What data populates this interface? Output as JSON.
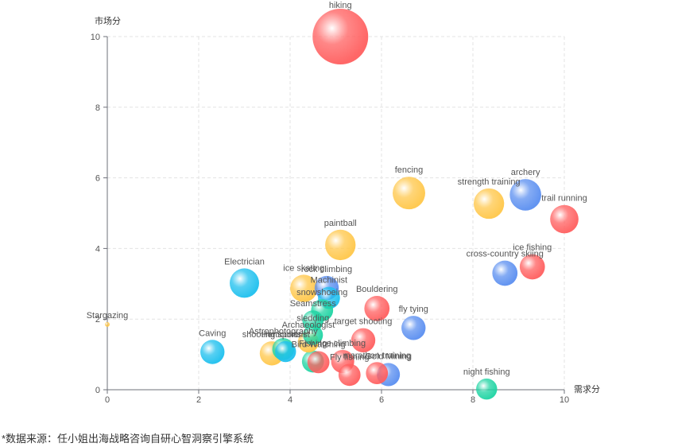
{
  "chart_data": {
    "type": "scatter",
    "xlabel": "需求分",
    "ylabel": "市场分",
    "xlim": [
      0,
      10
    ],
    "ylim": [
      0,
      10
    ],
    "xticks": [
      0,
      2,
      4,
      6,
      8,
      10
    ],
    "yticks": [
      0,
      2,
      4,
      6,
      8,
      10
    ],
    "grid": true,
    "colors": {
      "red": "#ff5f5f",
      "orange": "#ffc74a",
      "blue": "#5b8ff0",
      "cyan": "#1ec0ee",
      "green": "#1fd4a3"
    },
    "points": [
      {
        "label": "hiking",
        "x": 5.1,
        "y": 10.0,
        "size": 10.0,
        "color": "red"
      },
      {
        "label": "fencing",
        "x": 6.6,
        "y": 5.57,
        "size": 5.6,
        "color": "orange"
      },
      {
        "label": "archery",
        "x": 9.15,
        "y": 5.52,
        "size": 5.4,
        "color": "blue"
      },
      {
        "label": "strength training",
        "x": 8.35,
        "y": 5.27,
        "size": 5.2,
        "color": "orange"
      },
      {
        "label": "trail running",
        "x": 10.0,
        "y": 4.83,
        "size": 4.8,
        "color": "red"
      },
      {
        "label": "paintball",
        "x": 5.1,
        "y": 4.1,
        "size": 5.2,
        "color": "orange"
      },
      {
        "label": "ice fishing",
        "x": 9.3,
        "y": 3.48,
        "size": 4.2,
        "color": "red"
      },
      {
        "label": "cross-country skiing",
        "x": 8.7,
        "y": 3.3,
        "size": 4.2,
        "color": "blue"
      },
      {
        "label": "Electrician",
        "x": 3.0,
        "y": 3.02,
        "size": 5.0,
        "color": "cyan"
      },
      {
        "label": "ice skating",
        "x": 4.3,
        "y": 2.87,
        "size": 4.6,
        "color": "orange"
      },
      {
        "label": "rock climbing",
        "x": 4.8,
        "y": 2.88,
        "size": 4.0,
        "color": "blue"
      },
      {
        "label": "Machinist",
        "x": 4.85,
        "y": 2.6,
        "size": 3.6,
        "color": "cyan"
      },
      {
        "label": "snowshoeing",
        "x": 4.7,
        "y": 2.25,
        "size": 3.6,
        "color": "green"
      },
      {
        "label": "Bouldering",
        "x": 5.9,
        "y": 2.3,
        "size": 4.2,
        "color": "red"
      },
      {
        "label": "Seamstress",
        "x": 4.5,
        "y": 1.95,
        "size": 3.4,
        "color": "green"
      },
      {
        "label": "fly tying",
        "x": 6.7,
        "y": 1.75,
        "size": 4.0,
        "color": "blue"
      },
      {
        "label": "sledding",
        "x": 4.5,
        "y": 1.55,
        "size": 3.2,
        "color": "green"
      },
      {
        "label": "Archaeologist",
        "x": 4.4,
        "y": 1.35,
        "size": 3.4,
        "color": "orange"
      },
      {
        "label": "target shooting",
        "x": 5.6,
        "y": 1.4,
        "size": 4.0,
        "color": "red"
      },
      {
        "label": "Stargazing",
        "x": 0.0,
        "y": 1.85,
        "size": 0.3,
        "color": "orange"
      },
      {
        "label": "Caving",
        "x": 2.3,
        "y": 1.07,
        "size": 4.0,
        "color": "cyan"
      },
      {
        "label": "Astrophotography",
        "x": 3.85,
        "y": 1.15,
        "size": 3.6,
        "color": "green"
      },
      {
        "label": "shooting sports",
        "x": 3.6,
        "y": 1.03,
        "size": 4.0,
        "color": "orange"
      },
      {
        "label": "Horticulturist",
        "x": 3.9,
        "y": 1.08,
        "size": 3.4,
        "color": "cyan"
      },
      {
        "label": "Ice climbing",
        "x": 5.15,
        "y": 0.8,
        "size": 3.8,
        "color": "red"
      },
      {
        "label": "Fishing",
        "x": 4.5,
        "y": 0.8,
        "size": 3.6,
        "color": "green"
      },
      {
        "label": "Bird Watching",
        "x": 4.62,
        "y": 0.78,
        "size": 3.6,
        "color": "red"
      },
      {
        "label": "marathon training",
        "x": 5.9,
        "y": 0.47,
        "size": 3.6,
        "color": "red"
      },
      {
        "label": "Fly fishing",
        "x": 5.3,
        "y": 0.42,
        "size": 3.6,
        "color": "red"
      },
      {
        "label": "Gold Mining",
        "x": 6.15,
        "y": 0.43,
        "size": 3.8,
        "color": "blue"
      },
      {
        "label": "night fishing",
        "x": 8.3,
        "y": 0.02,
        "size": 3.4,
        "color": "green"
      }
    ]
  },
  "footer": {
    "source_note": "*数据来源：任小姐出海战略咨询自研心智洞察引擎系统"
  }
}
